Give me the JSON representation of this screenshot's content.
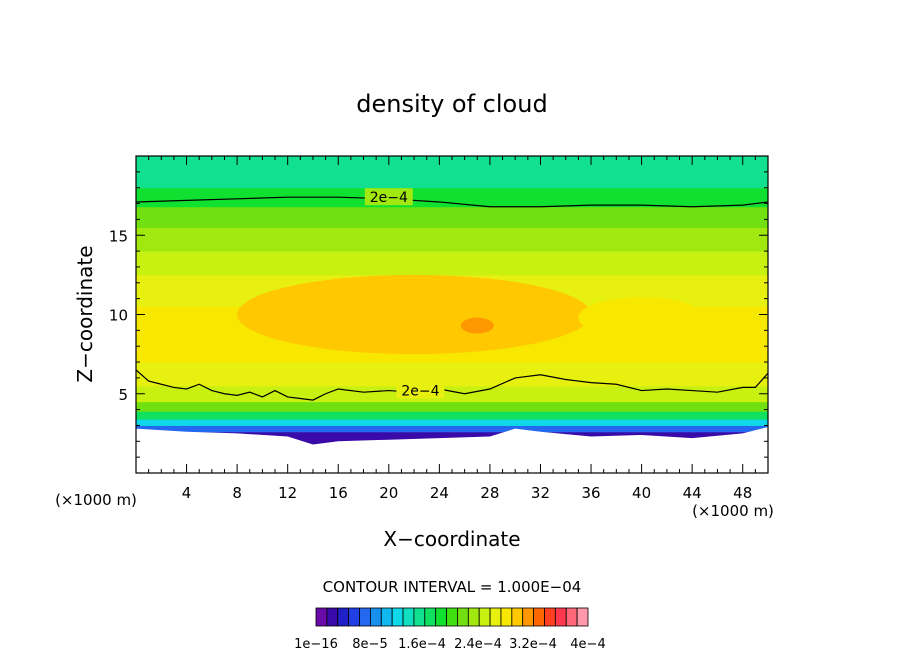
{
  "chart_data": {
    "type": "heatmap",
    "title": "density of cloud",
    "xlabel": "X−coordinate",
    "ylabel": "Z−coordinate",
    "x_unit_left": "(×1000 m)",
    "x_unit_right": "(×1000 m)",
    "xlim": [
      0,
      50
    ],
    "ylim": [
      0,
      20
    ],
    "x_ticks": [
      4,
      8,
      12,
      16,
      20,
      24,
      28,
      32,
      36,
      40,
      44,
      48
    ],
    "y_ticks": [
      5,
      10,
      15
    ],
    "contour_interval_text": "CONTOUR INTERVAL = 1.000E−04",
    "colorbar": {
      "min": 1e-16,
      "max": 0.0004,
      "labels": [
        "1e−16",
        "8e−5",
        "1.6e−4",
        "2.4e−4",
        "3.2e−4",
        "4e−4"
      ],
      "colors": [
        "#6a0aa8",
        "#3a0aa8",
        "#2020c8",
        "#2040e6",
        "#2468f0",
        "#1890f0",
        "#10b8f0",
        "#10d8e8",
        "#10e0c0",
        "#10e090",
        "#10e060",
        "#10e030",
        "#40e010",
        "#70e010",
        "#a0e810",
        "#c8f010",
        "#e8f010",
        "#f8e800",
        "#ffc800",
        "#ff9800",
        "#ff6800",
        "#ff4020",
        "#ff3850",
        "#ff6878",
        "#ff98a8"
      ]
    },
    "contours": [
      {
        "label": "2e−4",
        "level": 0.0002,
        "points": [
          [
            0,
            17.1
          ],
          [
            4,
            17.2
          ],
          [
            8,
            17.3
          ],
          [
            12,
            17.4
          ],
          [
            16,
            17.4
          ],
          [
            20,
            17.3
          ],
          [
            24,
            17.1
          ],
          [
            28,
            16.8
          ],
          [
            32,
            16.8
          ],
          [
            36,
            16.9
          ],
          [
            40,
            16.9
          ],
          [
            44,
            16.8
          ],
          [
            48,
            16.9
          ],
          [
            50,
            17.1
          ]
        ]
      },
      {
        "label": "2e−4",
        "level": 0.0002,
        "points": [
          [
            0,
            6.5
          ],
          [
            1,
            5.8
          ],
          [
            2,
            5.6
          ],
          [
            3,
            5.4
          ],
          [
            4,
            5.3
          ],
          [
            5,
            5.6
          ],
          [
            6,
            5.2
          ],
          [
            7,
            5.0
          ],
          [
            8,
            4.9
          ],
          [
            9,
            5.1
          ],
          [
            10,
            4.8
          ],
          [
            11,
            5.2
          ],
          [
            12,
            4.8
          ],
          [
            13,
            4.7
          ],
          [
            14,
            4.6
          ],
          [
            15,
            5.0
          ],
          [
            16,
            5.3
          ],
          [
            18,
            5.1
          ],
          [
            20,
            5.2
          ],
          [
            22,
            5.1
          ],
          [
            24,
            5.3
          ],
          [
            26,
            5.0
          ],
          [
            28,
            5.3
          ],
          [
            30,
            6.0
          ],
          [
            32,
            6.2
          ],
          [
            34,
            5.9
          ],
          [
            36,
            5.7
          ],
          [
            38,
            5.6
          ],
          [
            40,
            5.2
          ],
          [
            42,
            5.3
          ],
          [
            44,
            5.2
          ],
          [
            46,
            5.1
          ],
          [
            48,
            5.4
          ],
          [
            49,
            5.4
          ],
          [
            50,
            6.3
          ]
        ]
      }
    ],
    "field_bands": [
      {
        "z": 0.0,
        "level": 0
      },
      {
        "z": 1.5,
        "level": 0
      },
      {
        "z": 2.6,
        "level": 1
      },
      {
        "z": 3.0,
        "level": 4
      },
      {
        "z": 3.4,
        "level": 7
      },
      {
        "z": 3.9,
        "level": 10
      },
      {
        "z": 4.5,
        "level": 13
      },
      {
        "z": 5.5,
        "level": 15
      },
      {
        "z": 7.0,
        "level": 16
      },
      {
        "z": 8.5,
        "level": 17
      },
      {
        "z": 10.5,
        "level": 17
      },
      {
        "z": 12.5,
        "level": 16
      },
      {
        "z": 14.0,
        "level": 15
      },
      {
        "z": 15.5,
        "level": 14
      },
      {
        "z": 16.8,
        "level": 13
      },
      {
        "z": 18.0,
        "level": 11
      },
      {
        "z": 20.0,
        "level": 9
      }
    ],
    "cloud_base_z": [
      [
        0,
        2.8
      ],
      [
        4,
        2.6
      ],
      [
        8,
        2.5
      ],
      [
        12,
        2.3
      ],
      [
        14,
        1.8
      ],
      [
        16,
        2.0
      ],
      [
        20,
        2.1
      ],
      [
        24,
        2.2
      ],
      [
        28,
        2.3
      ],
      [
        30,
        2.8
      ],
      [
        32,
        2.6
      ],
      [
        36,
        2.3
      ],
      [
        40,
        2.4
      ],
      [
        44,
        2.2
      ],
      [
        48,
        2.5
      ],
      [
        50,
        2.9
      ]
    ],
    "grid": false,
    "legend": "bottom-center"
  }
}
